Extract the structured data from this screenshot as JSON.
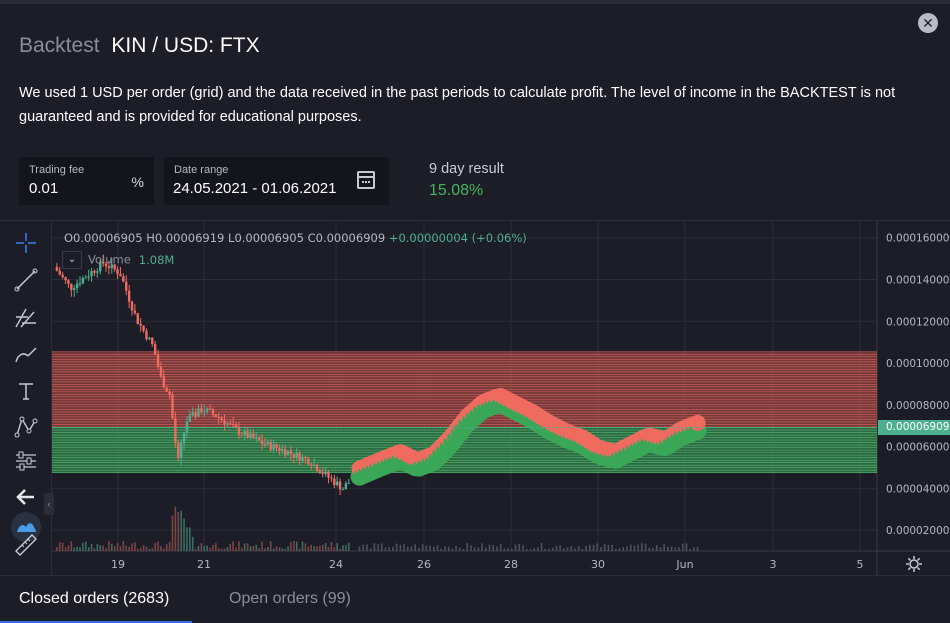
{
  "modal": {
    "close_icon": "close-icon",
    "title_prefix": "Backtest",
    "title_pair": "KIN / USD: FTX",
    "description": "We used 1 USD per order (grid) and the data received in the past periods to calculate profit. The level of income in the BACKTEST is not guaranteed and is provided for educational purposes."
  },
  "fields": {
    "fee_label": "Trading fee",
    "fee_value": "0.01",
    "fee_suffix": "%",
    "range_label": "Date range",
    "range_value": "24.05.2021 - 01.06.2021",
    "range_icon": "calendar-icon",
    "result_label": "9 day result",
    "result_value": "15.08%"
  },
  "colors": {
    "profit": "#3fb75e",
    "up": "#4caf8f",
    "down": "#ef6b5f",
    "sell_zone": "#c0504d",
    "buy_zone": "#3aa657",
    "tab_accent": "#2f6fe0"
  },
  "chart": {
    "ohlc": {
      "o": "O0.00006905",
      "h": "H0.00006919",
      "l": "L0.00006905",
      "c": "C0.00006909",
      "change": "+0.00000004 (+0.06%)"
    },
    "volume_label": "Volume",
    "volume_value": "1.08M",
    "last_price": "0.00006909",
    "toolbar_icons": [
      "crosshair-icon",
      "trend-line-icon",
      "fib-icon",
      "brush-icon",
      "text-icon",
      "pattern-icon",
      "prediction-icon",
      "back-arrow-icon",
      "logo-icon",
      "ruler-icon"
    ]
  },
  "chart_data": {
    "type": "candlestick",
    "x_ticks": [
      "19",
      "21",
      "24",
      "26",
      "28",
      "30",
      "Jun",
      "3",
      "5"
    ],
    "y_ticks": [
      "0.00002000",
      "0.00004000",
      "0.00006000",
      "0.00008000",
      "0.00010000",
      "0.00012000",
      "0.00014000",
      "0.00016000"
    ],
    "ylim": [
      1e-05,
      0.000168
    ],
    "grid_sell_range": [
      6.94e-05,
      0.0001055
    ],
    "grid_buy_range": [
      4.75e-05,
      6.94e-05
    ],
    "price_path": [
      [
        0,
        0.000146
      ],
      [
        2,
        0.000136
      ],
      [
        4,
        0.000142
      ],
      [
        6,
        0.000148
      ],
      [
        8,
        0.000143
      ],
      [
        10,
        0.000121
      ],
      [
        12,
        0.000108
      ],
      [
        13,
        9.2e-05
      ],
      [
        14,
        8.5e-05
      ],
      [
        15,
        5.2e-05
      ],
      [
        16,
        7.2e-05
      ],
      [
        18,
        7.8e-05
      ],
      [
        20,
        7.4e-05
      ],
      [
        22,
        6.8e-05
      ],
      [
        25,
        6.2e-05
      ],
      [
        28,
        5.8e-05
      ],
      [
        31,
        5.3e-05
      ],
      [
        33,
        4.6e-05
      ],
      [
        35,
        4e-05
      ],
      [
        37,
        4.8e-05
      ],
      [
        40,
        5.3e-05
      ],
      [
        42,
        5.6e-05
      ],
      [
        44,
        5.2e-05
      ],
      [
        46,
        5.5e-05
      ],
      [
        48,
        6.3e-05
      ],
      [
        50,
        7.3e-05
      ],
      [
        52,
        8e-05
      ],
      [
        54,
        8.3e-05
      ],
      [
        56,
        7.9e-05
      ],
      [
        58,
        7.5e-05
      ],
      [
        60,
        7e-05
      ],
      [
        62,
        6.6e-05
      ],
      [
        64,
        6.3e-05
      ],
      [
        66,
        5.8e-05
      ],
      [
        68,
        5.6e-05
      ],
      [
        70,
        6e-05
      ],
      [
        72,
        6.4e-05
      ],
      [
        74,
        6.2e-05
      ],
      [
        76,
        6.7e-05
      ],
      [
        78,
        7e-05
      ]
    ]
  },
  "tabs": {
    "closed": "Closed orders (2683)",
    "open": "Open orders (99)"
  }
}
